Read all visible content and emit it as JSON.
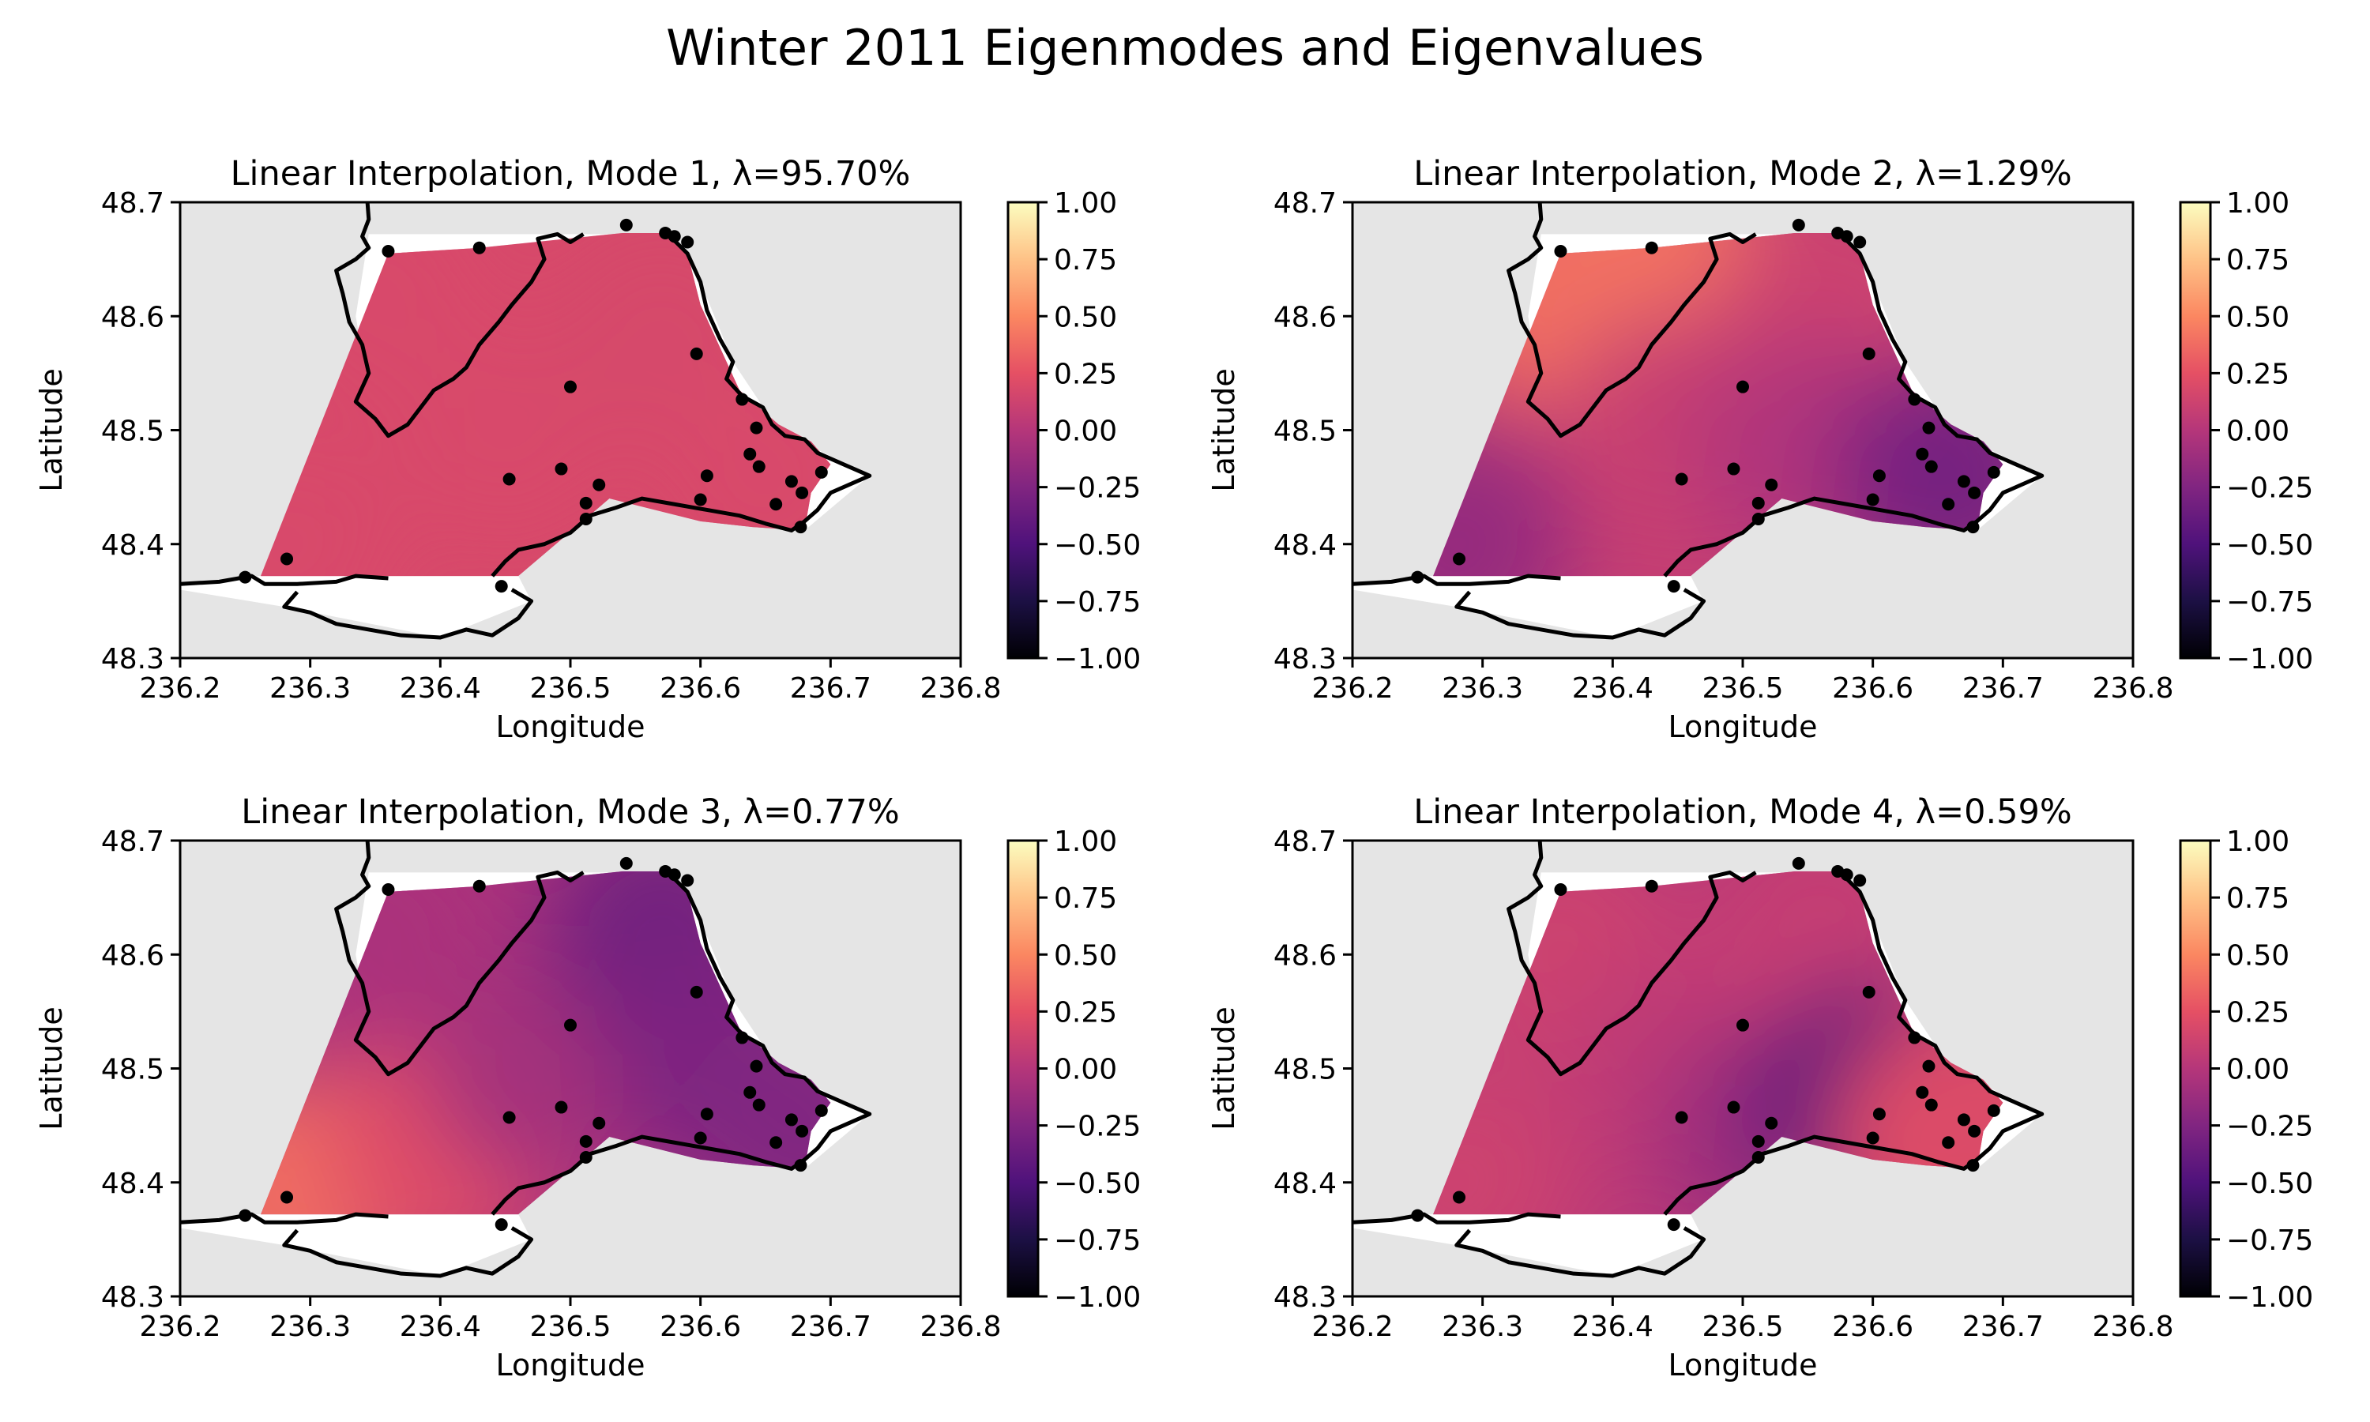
{
  "figure": {
    "title": "Winter 2011 Eigenmodes and Eigenvalues"
  },
  "colors": {
    "land": "#e5e5e5",
    "coastline": "#000000",
    "station": "#000000",
    "colormap": [
      "#000004",
      "#1c1044",
      "#4f127b",
      "#812581",
      "#b5367a",
      "#e55064",
      "#fb8761",
      "#fec287",
      "#fcfdbf"
    ]
  },
  "chart_data": [
    {
      "type": "heatmap",
      "title": "Linear Interpolation, Mode 1, λ=95.70%",
      "mode": 1,
      "eigenvalue_percent": 95.7,
      "xlabel": "Longitude",
      "ylabel": "Latitude",
      "xlim": [
        236.2,
        236.8
      ],
      "ylim": [
        48.3,
        48.7
      ],
      "xticks": [
        "236.2",
        "236.3",
        "236.4",
        "236.5",
        "236.6",
        "236.7",
        "236.8"
      ],
      "yticks": [
        "48.3",
        "48.4",
        "48.5",
        "48.6",
        "48.7"
      ],
      "colorbar": {
        "range": [
          -1.0,
          1.0
        ],
        "ticks": [
          "1.00",
          "0.75",
          "0.50",
          "0.25",
          "0.00",
          "−0.25",
          "−0.50",
          "−0.75",
          "−1.00"
        ]
      },
      "field": [
        {
          "lon": 236.28,
          "lat": 48.4,
          "value": 0.18
        },
        {
          "lon": 236.35,
          "lat": 48.62,
          "value": 0.18
        },
        {
          "lon": 236.45,
          "lat": 48.5,
          "value": 0.18
        },
        {
          "lon": 236.57,
          "lat": 48.58,
          "value": 0.17
        },
        {
          "lon": 236.65,
          "lat": 48.46,
          "value": 0.18
        }
      ]
    },
    {
      "type": "heatmap",
      "title": "Linear Interpolation, Mode 2, λ=1.29%",
      "mode": 2,
      "eigenvalue_percent": 1.29,
      "xlabel": "Longitude",
      "ylabel": "Latitude",
      "xlim": [
        236.2,
        236.8
      ],
      "ylim": [
        48.3,
        48.7
      ],
      "xticks": [
        "236.2",
        "236.3",
        "236.4",
        "236.5",
        "236.6",
        "236.7",
        "236.8"
      ],
      "yticks": [
        "48.3",
        "48.4",
        "48.5",
        "48.6",
        "48.7"
      ],
      "colorbar": {
        "range": [
          -1.0,
          1.0
        ],
        "ticks": [
          "1.00",
          "0.75",
          "0.50",
          "0.25",
          "0.00",
          "−0.25",
          "−0.50",
          "−0.75",
          "−1.00"
        ]
      },
      "field": [
        {
          "lon": 236.36,
          "lat": 48.62,
          "value": 0.38
        },
        {
          "lon": 236.43,
          "lat": 48.65,
          "value": 0.4
        },
        {
          "lon": 236.28,
          "lat": 48.4,
          "value": -0.15
        },
        {
          "lon": 236.45,
          "lat": 48.5,
          "value": 0.1
        },
        {
          "lon": 236.57,
          "lat": 48.6,
          "value": 0.12
        },
        {
          "lon": 236.55,
          "lat": 48.48,
          "value": -0.02
        },
        {
          "lon": 236.66,
          "lat": 48.46,
          "value": -0.3
        }
      ]
    },
    {
      "type": "heatmap",
      "title": "Linear Interpolation, Mode 3, λ=0.77%",
      "mode": 3,
      "eigenvalue_percent": 0.77,
      "xlabel": "Longitude",
      "ylabel": "Latitude",
      "xlim": [
        236.2,
        236.8
      ],
      "ylim": [
        48.3,
        48.7
      ],
      "xticks": [
        "236.2",
        "236.3",
        "236.4",
        "236.5",
        "236.6",
        "236.7",
        "236.8"
      ],
      "yticks": [
        "48.3",
        "48.4",
        "48.5",
        "48.6",
        "48.7"
      ],
      "colorbar": {
        "range": [
          -1.0,
          1.0
        ],
        "ticks": [
          "1.00",
          "0.75",
          "0.50",
          "0.25",
          "0.00",
          "−0.25",
          "−0.50",
          "−0.75",
          "−1.00"
        ]
      },
      "field": [
        {
          "lon": 236.29,
          "lat": 48.39,
          "value": 0.38
        },
        {
          "lon": 236.4,
          "lat": 48.43,
          "value": 0.22
        },
        {
          "lon": 236.35,
          "lat": 48.62,
          "value": -0.05
        },
        {
          "lon": 236.48,
          "lat": 48.5,
          "value": -0.08
        },
        {
          "lon": 236.57,
          "lat": 48.62,
          "value": -0.32
        },
        {
          "lon": 236.62,
          "lat": 48.5,
          "value": -0.28
        },
        {
          "lon": 236.68,
          "lat": 48.45,
          "value": -0.25
        }
      ]
    },
    {
      "type": "heatmap",
      "title": "Linear Interpolation, Mode 4, λ=0.59%",
      "mode": 4,
      "eigenvalue_percent": 0.59,
      "xlabel": "Longitude",
      "ylabel": "Latitude",
      "xlim": [
        236.2,
        236.8
      ],
      "ylim": [
        48.3,
        48.7
      ],
      "xticks": [
        "236.2",
        "236.3",
        "236.4",
        "236.5",
        "236.6",
        "236.7",
        "236.8"
      ],
      "yticks": [
        "48.3",
        "48.4",
        "48.5",
        "48.6",
        "48.7"
      ],
      "colorbar": {
        "range": [
          -1.0,
          1.0
        ],
        "ticks": [
          "1.00",
          "0.75",
          "0.50",
          "0.25",
          "0.00",
          "−0.25",
          "−0.50",
          "−0.75",
          "−1.00"
        ]
      },
      "field": [
        {
          "lon": 236.28,
          "lat": 48.4,
          "value": 0.12
        },
        {
          "lon": 236.36,
          "lat": 48.6,
          "value": 0.12
        },
        {
          "lon": 236.45,
          "lat": 48.5,
          "value": 0.05
        },
        {
          "lon": 236.52,
          "lat": 48.44,
          "value": -0.12
        },
        {
          "lon": 236.56,
          "lat": 48.62,
          "value": 0.08
        },
        {
          "lon": 236.6,
          "lat": 48.47,
          "value": -0.48
        },
        {
          "lon": 236.66,
          "lat": 48.44,
          "value": 0.25
        },
        {
          "lon": 236.69,
          "lat": 48.46,
          "value": 0.2
        }
      ]
    }
  ],
  "stations": [
    {
      "lon": 236.36,
      "lat": 48.657
    },
    {
      "lon": 236.43,
      "lat": 48.66
    },
    {
      "lon": 236.543,
      "lat": 48.68
    },
    {
      "lon": 236.573,
      "lat": 48.673
    },
    {
      "lon": 236.58,
      "lat": 48.67
    },
    {
      "lon": 236.59,
      "lat": 48.665
    },
    {
      "lon": 236.597,
      "lat": 48.567
    },
    {
      "lon": 236.5,
      "lat": 48.538
    },
    {
      "lon": 236.632,
      "lat": 48.527
    },
    {
      "lon": 236.643,
      "lat": 48.502
    },
    {
      "lon": 236.638,
      "lat": 48.479
    },
    {
      "lon": 236.645,
      "lat": 48.468
    },
    {
      "lon": 236.605,
      "lat": 48.46
    },
    {
      "lon": 236.493,
      "lat": 48.466
    },
    {
      "lon": 236.453,
      "lat": 48.457
    },
    {
      "lon": 236.522,
      "lat": 48.452
    },
    {
      "lon": 236.512,
      "lat": 48.436
    },
    {
      "lon": 236.6,
      "lat": 48.439
    },
    {
      "lon": 236.658,
      "lat": 48.435
    },
    {
      "lon": 236.67,
      "lat": 48.455
    },
    {
      "lon": 236.678,
      "lat": 48.445
    },
    {
      "lon": 236.693,
      "lat": 48.463
    },
    {
      "lon": 236.512,
      "lat": 48.422
    },
    {
      "lon": 236.677,
      "lat": 48.415
    },
    {
      "lon": 236.282,
      "lat": 48.387
    },
    {
      "lon": 236.25,
      "lat": 48.371
    },
    {
      "lon": 236.447,
      "lat": 48.363
    }
  ],
  "water_region_outline": [
    [
      236.262,
      48.372
    ],
    [
      236.36,
      48.655
    ],
    [
      236.43,
      48.66
    ],
    [
      236.54,
      48.673
    ],
    [
      236.575,
      48.673
    ],
    [
      236.59,
      48.655
    ],
    [
      236.6,
      48.61
    ],
    [
      236.63,
      48.535
    ],
    [
      236.66,
      48.505
    ],
    [
      236.685,
      48.49
    ],
    [
      236.7,
      48.47
    ],
    [
      236.685,
      48.445
    ],
    [
      236.68,
      48.412
    ],
    [
      236.64,
      48.415
    ],
    [
      236.6,
      48.42
    ],
    [
      236.53,
      48.44
    ],
    [
      236.46,
      48.372
    ]
  ],
  "coastlines": [
    [
      [
        236.2,
        48.365
      ],
      [
        236.23,
        48.367
      ],
      [
        236.255,
        48.372
      ],
      [
        236.265,
        48.365
      ],
      [
        236.29,
        48.365
      ],
      [
        236.32,
        48.367
      ],
      [
        236.335,
        48.372
      ],
      [
        236.36,
        48.37
      ]
    ],
    [
      [
        236.29,
        48.358
      ],
      [
        236.28,
        48.345
      ],
      [
        236.3,
        48.34
      ],
      [
        236.32,
        48.33
      ],
      [
        236.345,
        48.325
      ],
      [
        236.37,
        48.32
      ],
      [
        236.4,
        48.318
      ],
      [
        236.42,
        48.325
      ],
      [
        236.44,
        48.32
      ],
      [
        236.46,
        48.335
      ],
      [
        236.47,
        48.35
      ],
      [
        236.455,
        48.36
      ]
    ],
    [
      [
        236.344,
        48.7
      ],
      [
        236.345,
        48.685
      ],
      [
        236.34,
        48.67
      ],
      [
        236.345,
        48.66
      ],
      [
        236.335,
        48.65
      ],
      [
        236.32,
        48.64
      ],
      [
        236.325,
        48.62
      ],
      [
        236.33,
        48.595
      ],
      [
        236.34,
        48.575
      ],
      [
        236.345,
        48.55
      ],
      [
        236.335,
        48.525
      ],
      [
        236.35,
        48.51
      ],
      [
        236.36,
        48.495
      ],
      [
        236.375,
        48.505
      ],
      [
        236.385,
        48.52
      ],
      [
        236.395,
        48.535
      ],
      [
        236.41,
        48.545
      ],
      [
        236.42,
        48.555
      ],
      [
        236.43,
        48.575
      ],
      [
        236.445,
        48.595
      ],
      [
        236.455,
        48.61
      ],
      [
        236.47,
        48.63
      ],
      [
        236.48,
        48.65
      ],
      [
        236.475,
        48.668
      ],
      [
        236.49,
        48.672
      ],
      [
        236.5,
        48.665
      ],
      [
        236.51,
        48.672
      ]
    ],
    [
      [
        236.575,
        48.672
      ],
      [
        236.59,
        48.655
      ],
      [
        236.6,
        48.63
      ],
      [
        236.605,
        48.605
      ],
      [
        236.615,
        48.58
      ],
      [
        236.625,
        48.56
      ],
      [
        236.62,
        48.545
      ],
      [
        236.632,
        48.53
      ],
      [
        236.648,
        48.52
      ],
      [
        236.655,
        48.505
      ],
      [
        236.665,
        48.495
      ],
      [
        236.68,
        48.492
      ],
      [
        236.69,
        48.48
      ],
      [
        236.71,
        48.47
      ],
      [
        236.73,
        48.46
      ],
      [
        236.7,
        48.445
      ],
      [
        236.69,
        48.43
      ],
      [
        236.68,
        48.42
      ],
      [
        236.67,
        48.412
      ],
      [
        236.65,
        48.418
      ],
      [
        236.63,
        48.425
      ],
      [
        236.605,
        48.43
      ],
      [
        236.58,
        48.435
      ],
      [
        236.555,
        48.44
      ],
      [
        236.535,
        48.432
      ],
      [
        236.515,
        48.425
      ],
      [
        236.5,
        48.41
      ],
      [
        236.48,
        48.4
      ],
      [
        236.46,
        48.395
      ],
      [
        236.45,
        48.385
      ],
      [
        236.44,
        48.372
      ]
    ]
  ]
}
